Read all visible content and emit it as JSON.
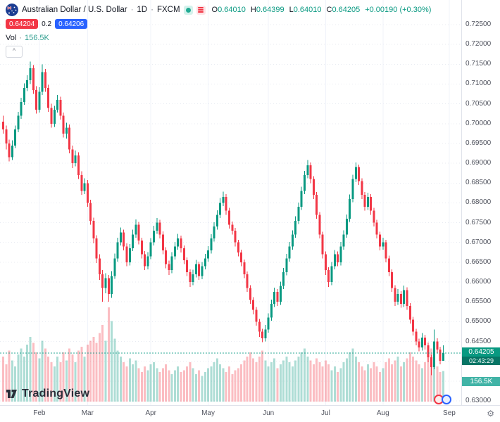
{
  "header": {
    "symbol": "Australian Dollar / U.S. Dollar",
    "sep": "·",
    "interval": "1D",
    "exchange": "FXCM",
    "ohlc": {
      "o_label": "O",
      "o": "0.64010",
      "h_label": "H",
      "h": "0.64399",
      "l_label": "L",
      "l": "0.64010",
      "c_label": "C",
      "c": "0.64205"
    },
    "change": "+0.00190 (+0.30%)",
    "bid": "0.64204",
    "spread": "0.2",
    "ask": "0.64206",
    "vol_label": "Vol",
    "vol_sep": "·",
    "vol_value": "156.5K"
  },
  "icons": {
    "chevron_up": "^",
    "gear": "⚙",
    "flag": "aud-flag-circle",
    "legend_dot": "teal-dot",
    "legend_list": "pink-list-lines",
    "event_icons": [
      "red-circle-badge",
      "blue-circle-badge"
    ]
  },
  "axis": {
    "last_price_label": "0.64205",
    "countdown": "02:43:29",
    "volume_badge": "156.5K"
  },
  "watermark": {
    "brand": "TradingView"
  },
  "colors": {
    "up": "#089981",
    "down": "#f23645",
    "bid_badge": "#f23645",
    "ask_badge": "#2962ff",
    "volume_badge": "#41b3a6",
    "axis_text": "#50535e"
  },
  "chart_data": {
    "type": "candlestick_with_volume",
    "title": "Australian Dollar / U.S. Dollar",
    "interval": "1D",
    "exchange": "FXCM",
    "legend_position": "top-left",
    "grid": true,
    "price_range_visible": [
      0.63,
      0.725
    ],
    "grid_step": 0.005,
    "last_price": 0.64205,
    "ohlc_current": {
      "open": 0.6401,
      "high": 0.64399,
      "low": 0.6401,
      "close": 0.64205,
      "change": "+0.00190",
      "change_pct": "+0.30%"
    },
    "current_volume_k": 156.5,
    "volume_scale_max_k": 480,
    "up_color": "#089981",
    "down_color": "#f23645",
    "months": [
      {
        "label": "Feb",
        "candle_index": 12
      },
      {
        "label": "Mar",
        "candle_index": 28
      },
      {
        "label": "Apr",
        "candle_index": 49
      },
      {
        "label": "May",
        "candle_index": 68
      },
      {
        "label": "Jun",
        "candle_index": 88
      },
      {
        "label": "Jul",
        "candle_index": 107
      },
      {
        "label": "Aug",
        "candle_index": 126
      },
      {
        "label": "Sep",
        "candle_index": 148
      }
    ],
    "candles": [
      [
        0.7005,
        0.702,
        0.6975,
        0.6985
      ],
      [
        0.6985,
        0.6995,
        0.6935,
        0.695
      ],
      [
        0.695,
        0.696,
        0.6905,
        0.6915
      ],
      [
        0.6915,
        0.6958,
        0.6908,
        0.6945
      ],
      [
        0.6945,
        0.6995,
        0.6938,
        0.6985
      ],
      [
        0.6985,
        0.703,
        0.6978,
        0.702
      ],
      [
        0.702,
        0.7065,
        0.7012,
        0.7055
      ],
      [
        0.7055,
        0.7102,
        0.7048,
        0.709
      ],
      [
        0.709,
        0.7122,
        0.7082,
        0.711
      ],
      [
        0.711,
        0.7157,
        0.71,
        0.714
      ],
      [
        0.714,
        0.7148,
        0.7075,
        0.7085
      ],
      [
        0.7085,
        0.7095,
        0.7025,
        0.7035
      ],
      [
        0.7035,
        0.7092,
        0.7028,
        0.708
      ],
      [
        0.708,
        0.715,
        0.7072,
        0.713
      ],
      [
        0.713,
        0.7138,
        0.708,
        0.709
      ],
      [
        0.709,
        0.7098,
        0.703,
        0.704
      ],
      [
        0.704,
        0.705,
        0.699,
        0.7
      ],
      [
        0.7,
        0.7045,
        0.6992,
        0.7035
      ],
      [
        0.7035,
        0.7072,
        0.7028,
        0.706
      ],
      [
        0.706,
        0.7068,
        0.701,
        0.702
      ],
      [
        0.702,
        0.7028,
        0.6965,
        0.6975
      ],
      [
        0.6975,
        0.7002,
        0.6962,
        0.699
      ],
      [
        0.699,
        0.6998,
        0.6925,
        0.6935
      ],
      [
        0.6935,
        0.6945,
        0.6888,
        0.69
      ],
      [
        0.69,
        0.6932,
        0.6892,
        0.692
      ],
      [
        0.692,
        0.6928,
        0.686,
        0.687
      ],
      [
        0.687,
        0.688,
        0.682,
        0.683
      ],
      [
        0.683,
        0.6862,
        0.6822,
        0.685
      ],
      [
        0.685,
        0.6858,
        0.679,
        0.68
      ],
      [
        0.68,
        0.6808,
        0.6745,
        0.6755
      ],
      [
        0.6755,
        0.6763,
        0.6698,
        0.671
      ],
      [
        0.671,
        0.6718,
        0.6648,
        0.666
      ],
      [
        0.666,
        0.667,
        0.6605,
        0.662
      ],
      [
        0.662,
        0.663,
        0.655,
        0.6585
      ],
      [
        0.6585,
        0.6622,
        0.6572,
        0.661
      ],
      [
        0.661,
        0.6618,
        0.655,
        0.657
      ],
      [
        0.657,
        0.6628,
        0.656,
        0.6615
      ],
      [
        0.6615,
        0.6672,
        0.6608,
        0.666
      ],
      [
        0.666,
        0.6712,
        0.6652,
        0.67
      ],
      [
        0.67,
        0.6738,
        0.6692,
        0.6725
      ],
      [
        0.6725,
        0.6732,
        0.668,
        0.669
      ],
      [
        0.669,
        0.6698,
        0.664,
        0.665
      ],
      [
        0.665,
        0.6696,
        0.6642,
        0.6685
      ],
      [
        0.6685,
        0.6732,
        0.6678,
        0.672
      ],
      [
        0.672,
        0.6758,
        0.6712,
        0.6745
      ],
      [
        0.6745,
        0.6752,
        0.6695,
        0.6705
      ],
      [
        0.6705,
        0.6712,
        0.666,
        0.667
      ],
      [
        0.667,
        0.6678,
        0.663,
        0.664
      ],
      [
        0.664,
        0.6676,
        0.6632,
        0.6665
      ],
      [
        0.6665,
        0.6711,
        0.6658,
        0.67
      ],
      [
        0.67,
        0.6742,
        0.6692,
        0.673
      ],
      [
        0.673,
        0.6762,
        0.6722,
        0.675
      ],
      [
        0.675,
        0.6757,
        0.671,
        0.672
      ],
      [
        0.672,
        0.6728,
        0.667,
        0.668
      ],
      [
        0.668,
        0.6688,
        0.6635,
        0.6645
      ],
      [
        0.6645,
        0.6654,
        0.6618,
        0.663
      ],
      [
        0.663,
        0.6676,
        0.6622,
        0.6665
      ],
      [
        0.6665,
        0.6701,
        0.6657,
        0.669
      ],
      [
        0.669,
        0.6722,
        0.6682,
        0.671
      ],
      [
        0.671,
        0.6717,
        0.6675,
        0.6685
      ],
      [
        0.6685,
        0.6692,
        0.6645,
        0.6655
      ],
      [
        0.6655,
        0.6662,
        0.6615,
        0.6625
      ],
      [
        0.6625,
        0.6632,
        0.6588,
        0.66
      ],
      [
        0.66,
        0.6631,
        0.6592,
        0.662
      ],
      [
        0.662,
        0.6656,
        0.6612,
        0.6645
      ],
      [
        0.6645,
        0.6652,
        0.6605,
        0.6615
      ],
      [
        0.6615,
        0.6651,
        0.6607,
        0.664
      ],
      [
        0.664,
        0.6671,
        0.6632,
        0.666
      ],
      [
        0.666,
        0.6691,
        0.6652,
        0.668
      ],
      [
        0.668,
        0.6721,
        0.6672,
        0.671
      ],
      [
        0.671,
        0.6751,
        0.6702,
        0.674
      ],
      [
        0.674,
        0.6781,
        0.6732,
        0.677
      ],
      [
        0.677,
        0.6812,
        0.6762,
        0.68
      ],
      [
        0.68,
        0.6828,
        0.6792,
        0.6815
      ],
      [
        0.6815,
        0.6822,
        0.677,
        0.678
      ],
      [
        0.678,
        0.6787,
        0.6735,
        0.6745
      ],
      [
        0.6745,
        0.6753,
        0.672,
        0.673
      ],
      [
        0.673,
        0.6737,
        0.669,
        0.67
      ],
      [
        0.67,
        0.6707,
        0.6665,
        0.6675
      ],
      [
        0.6675,
        0.6682,
        0.664,
        0.665
      ],
      [
        0.665,
        0.6657,
        0.661,
        0.662
      ],
      [
        0.662,
        0.6627,
        0.6575,
        0.6585
      ],
      [
        0.6585,
        0.6592,
        0.6545,
        0.6555
      ],
      [
        0.6555,
        0.6562,
        0.6518,
        0.653
      ],
      [
        0.653,
        0.6537,
        0.649,
        0.65
      ],
      [
        0.65,
        0.6507,
        0.6462,
        0.6475
      ],
      [
        0.6475,
        0.6482,
        0.6448,
        0.6458
      ],
      [
        0.6458,
        0.6492,
        0.645,
        0.648
      ],
      [
        0.648,
        0.6521,
        0.6472,
        0.651
      ],
      [
        0.651,
        0.6556,
        0.6502,
        0.6545
      ],
      [
        0.6545,
        0.6586,
        0.6537,
        0.6575
      ],
      [
        0.6575,
        0.6582,
        0.654,
        0.655
      ],
      [
        0.655,
        0.6601,
        0.6542,
        0.659
      ],
      [
        0.659,
        0.6636,
        0.6582,
        0.6625
      ],
      [
        0.6625,
        0.6671,
        0.6617,
        0.666
      ],
      [
        0.666,
        0.6701,
        0.6652,
        0.669
      ],
      [
        0.669,
        0.6731,
        0.6682,
        0.672
      ],
      [
        0.672,
        0.6766,
        0.6712,
        0.6755
      ],
      [
        0.6755,
        0.6801,
        0.6747,
        0.679
      ],
      [
        0.679,
        0.6841,
        0.6782,
        0.683
      ],
      [
        0.683,
        0.6881,
        0.6822,
        0.687
      ],
      [
        0.687,
        0.6908,
        0.6862,
        0.6895
      ],
      [
        0.6895,
        0.6902,
        0.685,
        0.686
      ],
      [
        0.686,
        0.6867,
        0.681,
        0.682
      ],
      [
        0.682,
        0.6827,
        0.676,
        0.677
      ],
      [
        0.677,
        0.6777,
        0.671,
        0.672
      ],
      [
        0.672,
        0.6727,
        0.666,
        0.667
      ],
      [
        0.667,
        0.6677,
        0.6618,
        0.663
      ],
      [
        0.663,
        0.6637,
        0.6588,
        0.66
      ],
      [
        0.66,
        0.6651,
        0.6592,
        0.664
      ],
      [
        0.664,
        0.6681,
        0.6632,
        0.667
      ],
      [
        0.667,
        0.6677,
        0.664,
        0.665
      ],
      [
        0.665,
        0.6701,
        0.6642,
        0.669
      ],
      [
        0.669,
        0.6731,
        0.6682,
        0.672
      ],
      [
        0.672,
        0.6771,
        0.6712,
        0.676
      ],
      [
        0.676,
        0.6821,
        0.6752,
        0.681
      ],
      [
        0.681,
        0.6871,
        0.6802,
        0.686
      ],
      [
        0.686,
        0.6902,
        0.6852,
        0.689
      ],
      [
        0.689,
        0.6897,
        0.6845,
        0.6855
      ],
      [
        0.6855,
        0.6862,
        0.681,
        0.682
      ],
      [
        0.682,
        0.6827,
        0.678,
        0.679
      ],
      [
        0.679,
        0.6826,
        0.6782,
        0.6815
      ],
      [
        0.6815,
        0.6822,
        0.677,
        0.678
      ],
      [
        0.678,
        0.6787,
        0.674,
        0.675
      ],
      [
        0.675,
        0.6757,
        0.671,
        0.672
      ],
      [
        0.672,
        0.6727,
        0.668,
        0.669
      ],
      [
        0.669,
        0.6712,
        0.6682,
        0.67
      ],
      [
        0.67,
        0.6707,
        0.665,
        0.666
      ],
      [
        0.666,
        0.6667,
        0.6615,
        0.6625
      ],
      [
        0.6625,
        0.6632,
        0.6575,
        0.6585
      ],
      [
        0.6585,
        0.6592,
        0.654,
        0.655
      ],
      [
        0.655,
        0.6582,
        0.6542,
        0.657
      ],
      [
        0.657,
        0.6577,
        0.6535,
        0.6545
      ],
      [
        0.6545,
        0.6591,
        0.6537,
        0.658
      ],
      [
        0.658,
        0.6587,
        0.653,
        0.654
      ],
      [
        0.654,
        0.6547,
        0.6495,
        0.6505
      ],
      [
        0.6505,
        0.6512,
        0.6465,
        0.6475
      ],
      [
        0.6475,
        0.6482,
        0.644,
        0.645
      ],
      [
        0.645,
        0.6457,
        0.6425,
        0.6435
      ],
      [
        0.6435,
        0.6471,
        0.6427,
        0.646
      ],
      [
        0.646,
        0.6467,
        0.643,
        0.644
      ],
      [
        0.644,
        0.6447,
        0.6398,
        0.641
      ],
      [
        0.641,
        0.6417,
        0.6365,
        0.6385
      ],
      [
        0.6385,
        0.648,
        0.638,
        0.645
      ],
      [
        0.645,
        0.6458,
        0.642,
        0.643
      ],
      [
        0.643,
        0.6437,
        0.6392,
        0.6401
      ],
      [
        0.6401,
        0.64399,
        0.6401,
        0.64205
      ]
    ],
    "volumes_k": [
      230,
      190,
      260,
      210,
      180,
      240,
      270,
      230,
      290,
      330,
      300,
      250,
      220,
      310,
      270,
      230,
      200,
      180,
      230,
      200,
      250,
      210,
      270,
      240,
      200,
      260,
      280,
      230,
      290,
      310,
      330,
      300,
      350,
      390,
      310,
      480,
      410,
      320,
      260,
      230,
      200,
      180,
      220,
      190,
      210,
      170,
      150,
      180,
      160,
      190,
      200,
      170,
      150,
      170,
      190,
      160,
      140,
      160,
      180,
      150,
      160,
      180,
      200,
      170,
      140,
      160,
      130,
      150,
      170,
      180,
      200,
      220,
      190,
      170,
      150,
      180,
      140,
      160,
      170,
      190,
      210,
      230,
      250,
      220,
      200,
      230,
      260,
      210,
      180,
      200,
      220,
      170,
      190,
      210,
      230,
      200,
      180,
      210,
      230,
      250,
      270,
      230,
      210,
      190,
      220,
      200,
      180,
      210,
      190,
      160,
      180,
      150,
      170,
      200,
      220,
      250,
      270,
      230,
      200,
      180,
      160,
      190,
      170,
      200,
      180,
      150,
      170,
      200,
      220,
      190,
      210,
      230,
      180,
      200,
      220,
      250,
      230,
      210,
      190,
      170,
      200,
      230,
      270,
      240,
      180,
      150,
      156.5
    ]
  }
}
